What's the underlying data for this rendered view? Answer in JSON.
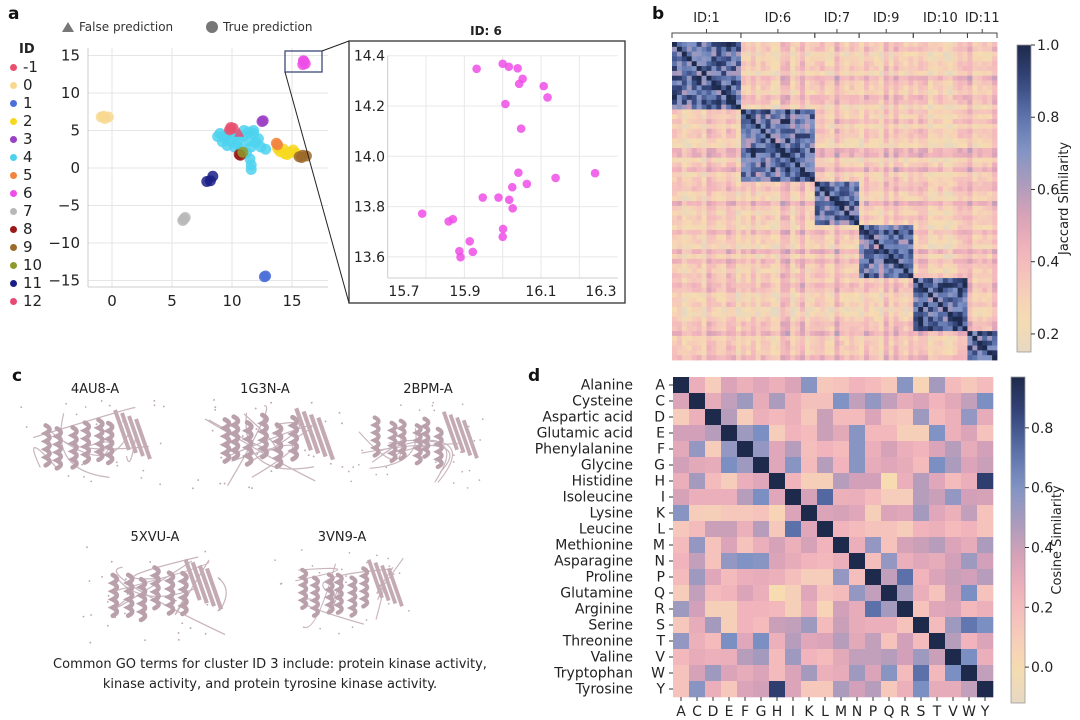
{
  "panels": {
    "a": {
      "letter": "a",
      "legend_markers": [
        {
          "shape": "triangle",
          "label": "False prediction"
        },
        {
          "shape": "circle",
          "label": "True prediction"
        }
      ],
      "id_legend_title": "ID",
      "id_legend": [
        {
          "id": "-1",
          "color": "#e8506e"
        },
        {
          "id": "0",
          "color": "#f8d891"
        },
        {
          "id": "1",
          "color": "#4a6fd8"
        },
        {
          "id": "2",
          "color": "#f7d81e"
        },
        {
          "id": "3",
          "color": "#9b3fc4"
        },
        {
          "id": "4",
          "color": "#4dd2ee"
        },
        {
          "id": "5",
          "color": "#f2843e"
        },
        {
          "id": "6",
          "color": "#ee4ee8"
        },
        {
          "id": "7",
          "color": "#b8b8b8"
        },
        {
          "id": "8",
          "color": "#9b1818"
        },
        {
          "id": "9",
          "color": "#9c6a2a"
        },
        {
          "id": "10",
          "color": "#8e9a2c"
        },
        {
          "id": "11",
          "color": "#1a1f86"
        },
        {
          "id": "12",
          "color": "#e84a74"
        }
      ]
    },
    "b": {
      "letter": "b"
    },
    "c": {
      "letter": "c",
      "proteins": [
        "4AU8-A",
        "1G3N-A",
        "2BPM-A",
        "5XVU-A",
        "3VN9-A"
      ],
      "go_terms_text": "Common GO terms for cluster ID 3 include: protein kinase activity, kinase activity, and protein tyrosine kinase activity."
    },
    "d": {
      "letter": "d"
    }
  },
  "chart_data": [
    {
      "id": "umap-scatter",
      "type": "scatter",
      "title": "",
      "xlabel": "",
      "ylabel": "",
      "xlim": [
        -2,
        18
      ],
      "ylim": [
        -16,
        16
      ],
      "xticks": [
        0,
        5,
        10,
        15
      ],
      "yticks": [
        15,
        10,
        5,
        0,
        -5,
        -10,
        -15
      ],
      "grid": true,
      "legend": "top and left",
      "clusters": [
        {
          "id": "0",
          "points": [
            [
              -0.9,
              6.8
            ],
            [
              -0.6,
              6.6
            ],
            [
              -0.3,
              6.8
            ],
            [
              -0.7,
              6.9
            ]
          ]
        },
        {
          "id": "1",
          "points": [
            [
              12.7,
              -14.5
            ],
            [
              12.8,
              -14.4
            ]
          ]
        },
        {
          "id": "2",
          "points": [
            [
              14.0,
              2.2
            ],
            [
              14.4,
              1.9
            ],
            [
              14.8,
              2.1
            ],
            [
              15.1,
              2.4
            ],
            [
              14.3,
              2.5
            ],
            [
              14.6,
              1.8
            ],
            [
              13.8,
              2.6
            ],
            [
              15.3,
              2.0
            ]
          ]
        },
        {
          "id": "3",
          "points": [
            [
              12.5,
              6.2
            ],
            [
              12.6,
              6.3
            ]
          ]
        },
        {
          "id": "4",
          "points": [
            [
              9.0,
              4.6
            ],
            [
              9.4,
              4.0
            ],
            [
              9.8,
              3.6
            ],
            [
              10.2,
              4.2
            ],
            [
              10.6,
              3.8
            ],
            [
              11.0,
              4.3
            ],
            [
              11.4,
              3.6
            ],
            [
              11.8,
              4.6
            ],
            [
              12.0,
              3.4
            ],
            [
              12.4,
              2.8
            ],
            [
              12.8,
              2.5
            ],
            [
              11.6,
              2.8
            ],
            [
              11.2,
              2.0
            ],
            [
              11.5,
              1.2
            ],
            [
              11.6,
              0.4
            ],
            [
              11.6,
              -0.2
            ],
            [
              10.8,
              2.6
            ],
            [
              10.2,
              2.8
            ],
            [
              9.6,
              3.0
            ],
            [
              9.2,
              3.5
            ],
            [
              8.8,
              4.2
            ],
            [
              10.0,
              4.8
            ],
            [
              11.0,
              5.0
            ],
            [
              11.8,
              5.0
            ],
            [
              12.2,
              3.9
            ],
            [
              11.4,
              4.8
            ],
            [
              10.4,
              3.2
            ],
            [
              9.5,
              4.4
            ]
          ]
        },
        {
          "id": "5",
          "points": [
            [
              13.7,
              3.3
            ],
            [
              13.8,
              3.1
            ]
          ]
        },
        {
          "id": "6",
          "points": [
            [
              15.9,
              13.8
            ],
            [
              16.0,
              14.2
            ],
            [
              16.1,
              13.9
            ],
            [
              15.95,
              14.3
            ]
          ]
        },
        {
          "id": "7",
          "points": [
            [
              5.9,
              -7.0
            ],
            [
              6.1,
              -6.6
            ],
            [
              6.0,
              -6.8
            ]
          ]
        },
        {
          "id": "8",
          "points": [
            [
              10.6,
              1.8
            ],
            [
              10.7,
              1.7
            ]
          ]
        },
        {
          "id": "9",
          "points": [
            [
              15.6,
              1.5
            ],
            [
              15.9,
              1.7
            ],
            [
              16.2,
              1.6
            ],
            [
              15.8,
              1.4
            ]
          ]
        },
        {
          "id": "10",
          "points": [
            [
              10.9,
              2.1
            ]
          ]
        },
        {
          "id": "11",
          "points": [
            [
              7.9,
              -1.8
            ],
            [
              8.2,
              -1.7
            ],
            [
              8.4,
              -1.1
            ]
          ]
        },
        {
          "id": "-1",
          "points": [
            [
              9.9,
              5.4
            ],
            [
              10.1,
              5.3
            ],
            [
              9.8,
              5.1
            ]
          ]
        },
        {
          "id": "12",
          "points": [
            [
              10.6,
              4.7
            ]
          ],
          "marker": "triangle"
        }
      ]
    },
    {
      "id": "zoom-id6",
      "type": "scatter",
      "title": "ID: 6",
      "xlim": [
        15.7,
        16.3
      ],
      "ylim": [
        13.52,
        14.42
      ],
      "xticks": [
        15.7,
        15.9,
        16.1,
        16.3
      ],
      "yticks": [
        14.4,
        14.2,
        14.0,
        13.8,
        13.6
      ],
      "grid": true,
      "color": "#ee4ee8",
      "x": [
        15.932,
        16.0,
        16.016,
        16.039,
        16.052,
        16.043,
        16.107,
        16.117,
        16.007,
        16.048,
        16.041,
        16.063,
        16.025,
        16.138,
        16.241,
        15.948,
        15.989,
        16.017,
        16.026,
        15.79,
        15.859,
        15.87,
        16.001,
        16.0,
        15.914,
        15.887,
        15.922,
        15.89
      ],
      "y": [
        14.348,
        14.368,
        14.356,
        14.35,
        14.308,
        14.288,
        14.279,
        14.234,
        14.208,
        14.11,
        13.935,
        13.89,
        13.877,
        13.914,
        13.933,
        13.836,
        13.836,
        13.827,
        13.793,
        13.772,
        13.741,
        13.75,
        13.711,
        13.68,
        13.662,
        13.623,
        13.62,
        13.599
      ]
    },
    {
      "id": "jaccard-heatmap",
      "type": "heatmap",
      "title": "",
      "cluster_labels": [
        "ID:1",
        "ID:6",
        "ID:7",
        "ID:9",
        "ID:10",
        "ID:11"
      ],
      "cluster_sizes": [
        14,
        15,
        9,
        11,
        11,
        6
      ],
      "within_similarity": [
        0.82,
        0.8,
        0.78,
        0.78,
        0.85,
        0.8
      ],
      "between_similarity": 0.35,
      "colorbar_label": "Jaccard Similarity",
      "colorbar_ticks": [
        1.0,
        0.8,
        0.6,
        0.4,
        0.2
      ],
      "vmin": 0.15,
      "vmax": 1.0
    },
    {
      "id": "cosine-heatmap",
      "type": "heatmap",
      "row_names": [
        "Alanine",
        "Cysteine",
        "Aspartic acid",
        "Glutamic acid",
        "Phenylalanine",
        "Glycine",
        "Histidine",
        "Isoleucine",
        "Lysine",
        "Leucine",
        "Methionine",
        "Asparagine",
        "Proline",
        "Glutamine",
        "Arginine",
        "Serine",
        "Threonine",
        "Valine",
        "Tryptophan",
        "Tyrosine"
      ],
      "row_codes": [
        "A",
        "C",
        "D",
        "E",
        "F",
        "G",
        "H",
        "I",
        "K",
        "L",
        "M",
        "N",
        "P",
        "Q",
        "R",
        "S",
        "T",
        "V",
        "W",
        "Y"
      ],
      "col_codes": [
        "A",
        "C",
        "D",
        "E",
        "F",
        "G",
        "H",
        "I",
        "K",
        "L",
        "M",
        "N",
        "P",
        "Q",
        "R",
        "S",
        "T",
        "V",
        "W",
        "Y"
      ],
      "colorbar_label": "Cosine Similarity",
      "colorbar_ticks": [
        0.8,
        0.6,
        0.4,
        0.2,
        0.0
      ],
      "vmin": -0.12,
      "vmax": 0.97,
      "values": [
        [
          0.97,
          0.28,
          0.1,
          0.35,
          0.27,
          0.33,
          0.27,
          0.35,
          0.58,
          0.12,
          0.15,
          0.25,
          0.2,
          0.12,
          0.58,
          0.05,
          0.5,
          0.2,
          0.12,
          0.2
        ],
        [
          0.35,
          0.97,
          0.3,
          0.42,
          0.52,
          0.3,
          0.48,
          0.27,
          0.17,
          0.17,
          0.6,
          0.42,
          0.55,
          0.42,
          0.3,
          0.35,
          0.25,
          0.32,
          0.42,
          0.62
        ],
        [
          0.1,
          0.27,
          0.97,
          0.45,
          0.1,
          0.27,
          0.22,
          0.27,
          0.12,
          0.4,
          0.2,
          0.2,
          0.35,
          0.15,
          0.12,
          0.52,
          0.2,
          0.27,
          0.55,
          0.3
        ],
        [
          0.38,
          0.38,
          0.45,
          0.97,
          0.52,
          0.62,
          0.1,
          0.25,
          0.2,
          0.4,
          0.32,
          0.58,
          0.22,
          0.22,
          0.08,
          0.08,
          0.6,
          0.27,
          0.35,
          0.15
        ],
        [
          0.32,
          0.55,
          0.1,
          0.55,
          0.97,
          0.55,
          0.33,
          0.45,
          0.18,
          0.25,
          0.2,
          0.58,
          0.28,
          0.37,
          0.28,
          0.25,
          0.35,
          0.45,
          0.3,
          0.38
        ],
        [
          0.38,
          0.32,
          0.3,
          0.62,
          0.52,
          0.97,
          0.33,
          0.58,
          0.2,
          0.45,
          0.25,
          0.58,
          0.3,
          0.33,
          0.3,
          0.2,
          0.62,
          0.48,
          0.35,
          0.4
        ],
        [
          0.28,
          0.5,
          0.2,
          0.1,
          0.28,
          0.33,
          0.97,
          0.25,
          0.08,
          0.08,
          0.45,
          0.38,
          0.38,
          0.0,
          0.28,
          0.45,
          0.33,
          0.2,
          0.28,
          0.88
        ],
        [
          0.37,
          0.28,
          0.28,
          0.28,
          0.45,
          0.62,
          0.33,
          0.97,
          0.37,
          0.75,
          0.27,
          0.28,
          0.2,
          0.1,
          0.1,
          0.45,
          0.4,
          0.55,
          0.38,
          0.37
        ],
        [
          0.58,
          0.1,
          0.08,
          0.12,
          0.12,
          0.15,
          0.05,
          0.35,
          0.97,
          0.35,
          0.37,
          0.33,
          0.08,
          0.35,
          0.33,
          0.5,
          0.33,
          0.27,
          0.42,
          0.15
        ],
        [
          0.12,
          0.2,
          0.4,
          0.4,
          0.27,
          0.45,
          0.12,
          0.72,
          0.33,
          0.97,
          0.25,
          0.2,
          0.15,
          0.15,
          0.1,
          0.25,
          0.27,
          0.2,
          0.25,
          0.15
        ],
        [
          0.2,
          0.55,
          0.15,
          0.35,
          0.15,
          0.28,
          0.37,
          0.27,
          0.37,
          0.25,
          0.97,
          0.28,
          0.55,
          0.15,
          0.37,
          0.4,
          0.45,
          0.35,
          0.3,
          0.48
        ],
        [
          0.25,
          0.42,
          0.15,
          0.55,
          0.6,
          0.58,
          0.35,
          0.3,
          0.25,
          0.22,
          0.28,
          0.97,
          0.18,
          0.55,
          0.28,
          0.33,
          0.3,
          0.38,
          0.52,
          0.38
        ],
        [
          0.2,
          0.52,
          0.33,
          0.2,
          0.28,
          0.3,
          0.27,
          0.18,
          0.1,
          0.1,
          0.55,
          0.18,
          0.97,
          0.42,
          0.72,
          0.25,
          0.35,
          0.4,
          0.38,
          0.45
        ],
        [
          0.1,
          0.42,
          0.2,
          0.25,
          0.35,
          0.28,
          0.0,
          0.08,
          0.33,
          0.15,
          0.2,
          0.55,
          0.42,
          0.97,
          0.5,
          0.28,
          0.15,
          0.38,
          0.62,
          0.15
        ],
        [
          0.52,
          0.38,
          0.08,
          0.08,
          0.25,
          0.25,
          0.22,
          0.08,
          0.28,
          0.05,
          0.38,
          0.3,
          0.72,
          0.5,
          0.97,
          0.15,
          0.33,
          0.35,
          0.22,
          0.27
        ],
        [
          0.12,
          0.3,
          0.5,
          0.08,
          0.25,
          0.2,
          0.4,
          0.42,
          0.52,
          0.2,
          0.4,
          0.3,
          0.28,
          0.28,
          0.15,
          0.97,
          0.2,
          0.52,
          0.7,
          0.62
        ],
        [
          0.55,
          0.27,
          0.2,
          0.62,
          0.33,
          0.62,
          0.27,
          0.45,
          0.33,
          0.35,
          0.45,
          0.32,
          0.42,
          0.15,
          0.38,
          0.2,
          0.97,
          0.45,
          0.25,
          0.35
        ],
        [
          0.22,
          0.3,
          0.27,
          0.28,
          0.45,
          0.5,
          0.2,
          0.52,
          0.25,
          0.2,
          0.32,
          0.42,
          0.42,
          0.45,
          0.38,
          0.52,
          0.4,
          0.97,
          0.62,
          0.28
        ],
        [
          0.15,
          0.37,
          0.52,
          0.35,
          0.3,
          0.35,
          0.2,
          0.35,
          0.5,
          0.27,
          0.3,
          0.52,
          0.35,
          0.58,
          0.2,
          0.72,
          0.22,
          0.62,
          0.97,
          0.42
        ],
        [
          0.15,
          0.58,
          0.28,
          0.12,
          0.35,
          0.38,
          0.88,
          0.35,
          0.12,
          0.12,
          0.48,
          0.38,
          0.45,
          0.12,
          0.27,
          0.62,
          0.3,
          0.3,
          0.42,
          0.97
        ]
      ]
    }
  ],
  "colormap": [
    "#e6d8c2",
    "#f6dcb0",
    "#f6c8bc",
    "#f2b4bc",
    "#d8a2b8",
    "#a99bbd",
    "#7f93c5",
    "#5a6fa8",
    "#34457a",
    "#1e2a4c"
  ]
}
